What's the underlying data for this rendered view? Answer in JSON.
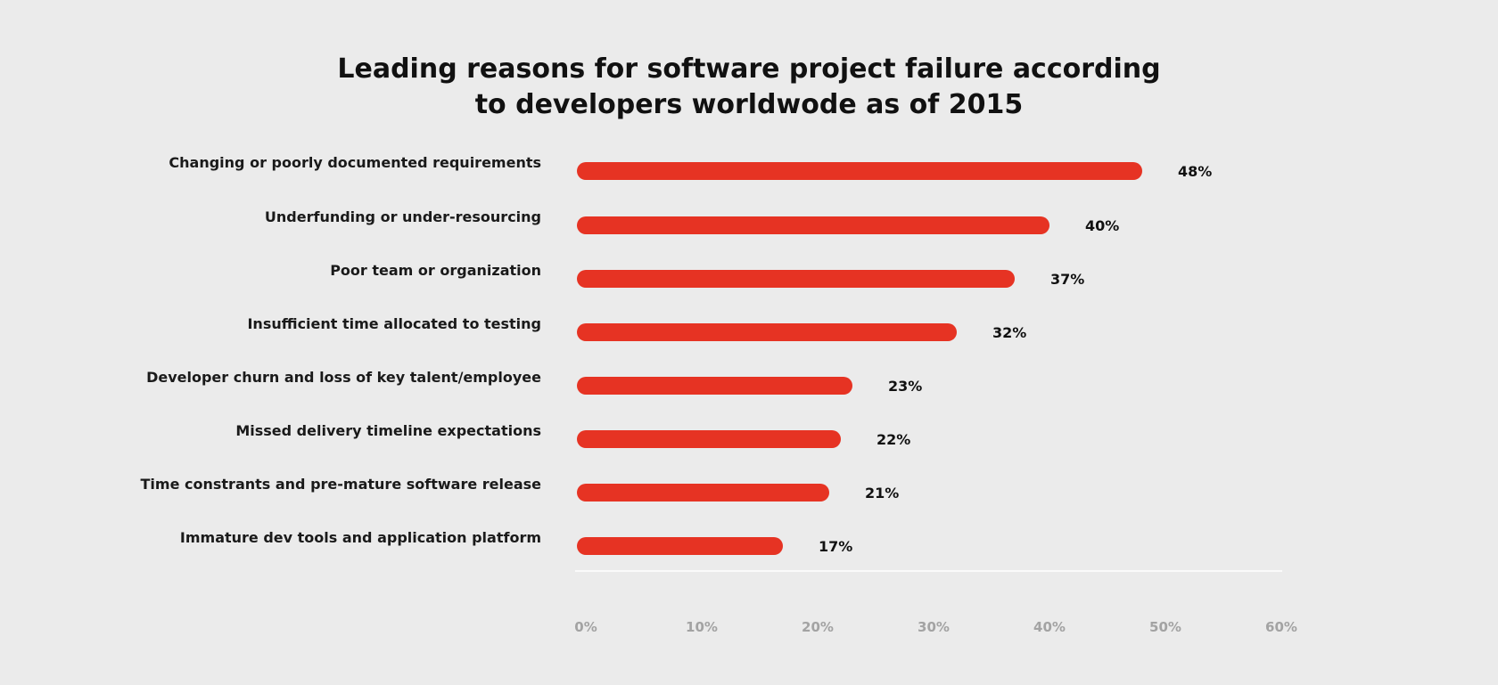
{
  "chart_data": {
    "type": "bar",
    "orientation": "horizontal",
    "title_lines": [
      "Leading reasons for software project failure according",
      "to developers worldwode as of 2015"
    ],
    "categories": [
      "Changing or poorly documented requirements",
      "Underfunding or under-resourcing",
      "Poor team or organization",
      "Insufficient time allocated to testing",
      "Developer churn and loss of key talent/employee",
      "Missed delivery timeline expectations",
      "Time constrants and pre-mature software release",
      "Immature dev tools and application platform"
    ],
    "values": [
      48,
      40,
      37,
      32,
      23,
      22,
      21,
      17
    ],
    "value_labels": [
      "48%",
      "40%",
      "37%",
      "32%",
      "23%",
      "22%",
      "21%",
      "17%"
    ],
    "xlim": [
      0,
      60
    ],
    "ticks": [
      0,
      10,
      20,
      30,
      40,
      50,
      60
    ],
    "tick_labels": [
      "0%",
      "10%",
      "20%",
      "30%",
      "40%",
      "50%",
      "60%"
    ],
    "bar_color": "#e63323",
    "grid": false,
    "legend": "none"
  }
}
